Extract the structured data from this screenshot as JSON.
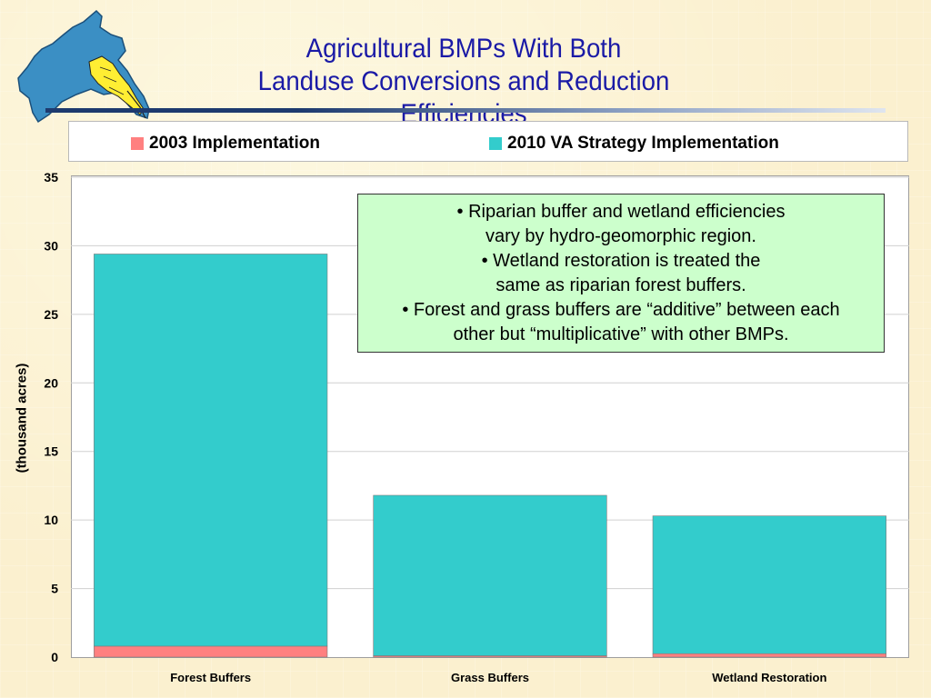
{
  "title": {
    "line1": "Agricultural BMPs With Both",
    "line2": "Landuse Conversions and Reduction Efficiencies"
  },
  "logo": {
    "icon": "chesapeake-bay-watershed-map-icon",
    "water_color": "#3b8fc4",
    "state_color": "#ffee33"
  },
  "legend": {
    "items": [
      {
        "label": "2003 Implementation",
        "color": "#ff8080"
      },
      {
        "label": "2010 VA Strategy Implementation",
        "color": "#33cccc"
      }
    ]
  },
  "annotation": {
    "lines": [
      "• Riparian buffer and wetland efficiencies",
      "vary by hydro-geomorphic region.",
      "• Wetland restoration is treated the",
      "same as riparian forest buffers.",
      "• Forest and grass buffers are “additive” between each",
      "other but “multiplicative” with other BMPs."
    ]
  },
  "chart_data": {
    "type": "bar",
    "stacked": true,
    "title": "Agricultural BMPs With Both Landuse Conversions and Reduction Efficiencies",
    "ylabel": "(thousand acres)",
    "xlabel": "",
    "categories": [
      "Forest Buffers",
      "Grass Buffers",
      "Wetland Restoration"
    ],
    "series": [
      {
        "name": "2003 Implementation",
        "color": "#ff8080",
        "values": [
          0.8,
          0.1,
          0.25
        ]
      },
      {
        "name": "2010 VA Strategy Implementation",
        "color": "#33cccc",
        "values": [
          28.6,
          11.7,
          10.05
        ]
      }
    ],
    "ylim": [
      0,
      35
    ],
    "yticks": [
      0,
      5,
      10,
      15,
      20,
      25,
      30,
      35
    ],
    "grid": true,
    "legend_position": "top"
  }
}
